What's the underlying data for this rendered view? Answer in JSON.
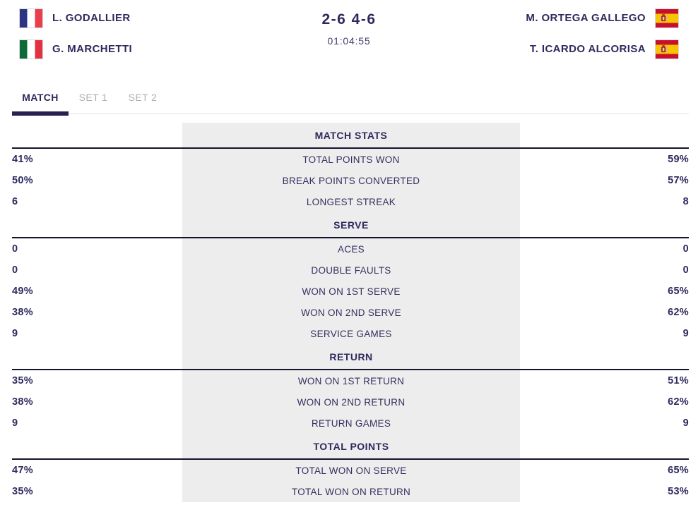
{
  "scoreboard": {
    "score": "2-6 4-6",
    "duration": "01:04:55",
    "team_left": {
      "players": [
        {
          "name": "L. GODALLIER",
          "flag": "france"
        },
        {
          "name": "G. MARCHETTI",
          "flag": "italy"
        }
      ]
    },
    "team_right": {
      "players": [
        {
          "name": "M. ORTEGA GALLEGO",
          "flag": "spain"
        },
        {
          "name": "T. ICARDO ALCORISA",
          "flag": "spain"
        }
      ]
    }
  },
  "tabs": [
    {
      "label": "MATCH",
      "active": true
    },
    {
      "label": "SET 1",
      "active": false
    },
    {
      "label": "SET 2",
      "active": false
    }
  ],
  "sections": [
    {
      "title": "MATCH STATS",
      "rows": [
        {
          "left": "41%",
          "label": "TOTAL POINTS WON",
          "right": "59%"
        },
        {
          "left": "50%",
          "label": "BREAK POINTS CONVERTED",
          "right": "57%"
        },
        {
          "left": "6",
          "label": "LONGEST STREAK",
          "right": "8"
        }
      ]
    },
    {
      "title": "SERVE",
      "rows": [
        {
          "left": "0",
          "label": "ACES",
          "right": "0"
        },
        {
          "left": "0",
          "label": "DOUBLE FAULTS",
          "right": "0"
        },
        {
          "left": "49%",
          "label": "WON ON 1ST SERVE",
          "right": "65%"
        },
        {
          "left": "38%",
          "label": "WON ON 2ND SERVE",
          "right": "62%"
        },
        {
          "left": "9",
          "label": "SERVICE GAMES",
          "right": "9"
        }
      ]
    },
    {
      "title": "RETURN",
      "rows": [
        {
          "left": "35%",
          "label": "WON ON 1ST RETURN",
          "right": "51%"
        },
        {
          "left": "38%",
          "label": "WON ON 2ND RETURN",
          "right": "62%"
        },
        {
          "left": "9",
          "label": "RETURN GAMES",
          "right": "9"
        }
      ]
    },
    {
      "title": "TOTAL POINTS",
      "rows": [
        {
          "left": "47%",
          "label": "TOTAL WON ON SERVE",
          "right": "65%"
        },
        {
          "left": "35%",
          "label": "TOTAL WON ON RETURN",
          "right": "53%"
        }
      ]
    }
  ],
  "colors": {
    "accent_navy": "#2e2a5e",
    "section_line": "#16142c",
    "center_band": "#ededed",
    "inactive_tab": "#b0b0b0",
    "tab_underline": "#262152"
  }
}
